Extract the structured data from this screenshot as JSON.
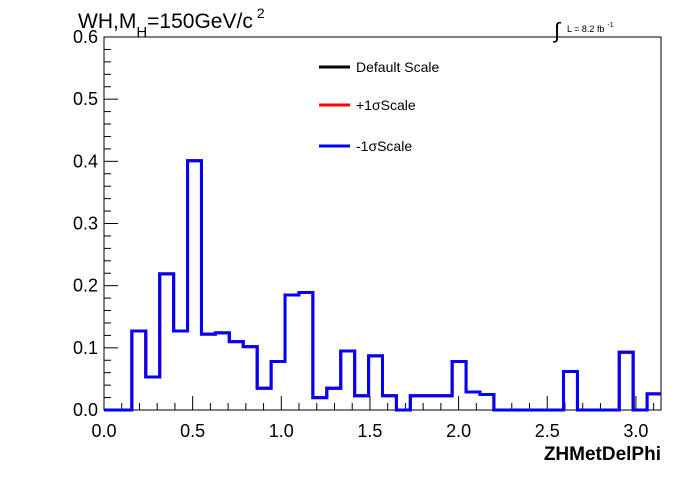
{
  "title": {
    "prefix": "WH,M",
    "subscript": "H",
    "value": "=150GeV/c",
    "superscript": "2"
  },
  "lumi": {
    "integral_sign": "∫",
    "text": "L = 8.2 fb",
    "superscript": "-1"
  },
  "chart_data": {
    "type": "histogram",
    "xlabel": "ZHMetDelPhi",
    "xlim": [
      0,
      3.1416
    ],
    "ylim": [
      0,
      0.6
    ],
    "x_ticks": [
      "0.0",
      "0.5",
      "1.0",
      "1.5",
      "2.0",
      "2.5",
      "3.0"
    ],
    "x_tick_values": [
      0,
      0.5,
      1.0,
      1.5,
      2.0,
      2.5,
      3.0
    ],
    "y_ticks": [
      "0.0",
      "0.1",
      "0.2",
      "0.3",
      "0.4",
      "0.5",
      "0.6"
    ],
    "y_tick_values": [
      0,
      0.1,
      0.2,
      0.3,
      0.4,
      0.5,
      0.6
    ],
    "bins": 40,
    "bin_values": [
      0,
      0,
      0.127,
      0.053,
      0.219,
      0.127,
      0.401,
      0.122,
      0.124,
      0.11,
      0.102,
      0.035,
      0.078,
      0.185,
      0.189,
      0.02,
      0.035,
      0.095,
      0.023,
      0.087,
      0.023,
      0,
      0.023,
      0.023,
      0.023,
      0.078,
      0.029,
      0.025,
      0,
      0,
      0,
      0,
      0,
      0.062,
      0,
      0,
      0,
      0.093,
      0,
      0.026
    ],
    "series": [
      {
        "name": "Default Scale",
        "color": "#000000"
      },
      {
        "name": "+1σScale",
        "color": "#ff0000"
      },
      {
        "name": "-1σScale",
        "color": "#0000ff"
      }
    ],
    "legend_position": "top-right",
    "grid": false
  }
}
